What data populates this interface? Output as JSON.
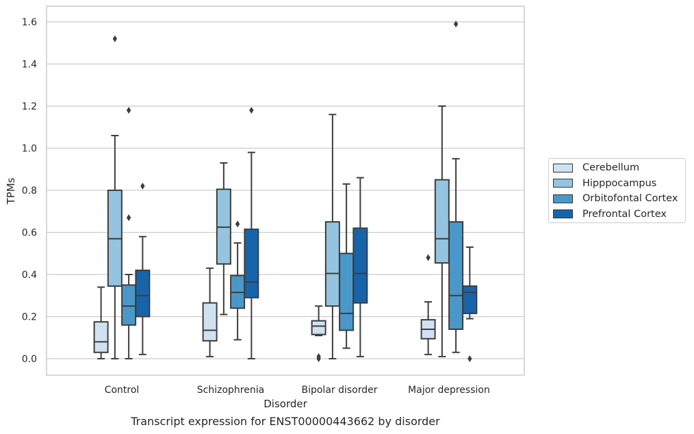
{
  "caption": "Transcript expression for ENST00000443662 by disorder",
  "chart_data": {
    "type": "box",
    "title": "",
    "xlabel": "Disorder",
    "ylabel": "TPMs",
    "ylim": [
      -0.08,
      1.67
    ],
    "yticks": [
      "0.0",
      "0.2",
      "0.4",
      "0.6",
      "0.8",
      "1.0",
      "1.2",
      "1.4",
      "1.6"
    ],
    "grid": "horizontal",
    "legend_position": "right",
    "categories": [
      "Control",
      "Schizophrenia",
      "Bipolar disorder",
      "Major depression"
    ],
    "series": [
      {
        "name": "Cerebellum",
        "color": "#d0e1f2",
        "boxes": [
          {
            "whislo": 0.0,
            "q1": 0.03,
            "med": 0.08,
            "q3": 0.175,
            "whishi": 0.34,
            "fliers": []
          },
          {
            "whislo": 0.01,
            "q1": 0.085,
            "med": 0.135,
            "q3": 0.265,
            "whishi": 0.43,
            "fliers": []
          },
          {
            "whislo": 0.11,
            "q1": 0.115,
            "med": 0.155,
            "q3": 0.18,
            "whishi": 0.25,
            "fliers": [
              0.01,
              0.0
            ]
          },
          {
            "whislo": 0.02,
            "q1": 0.095,
            "med": 0.14,
            "q3": 0.185,
            "whishi": 0.27,
            "fliers": [
              0.48
            ]
          }
        ]
      },
      {
        "name": "Hipppocampus",
        "color": "#94c4df",
        "boxes": [
          {
            "whislo": 0.0,
            "q1": 0.345,
            "med": 0.57,
            "q3": 0.8,
            "whishi": 1.06,
            "fliers": [
              1.52
            ]
          },
          {
            "whislo": 0.21,
            "q1": 0.45,
            "med": 0.625,
            "q3": 0.805,
            "whishi": 0.93,
            "fliers": []
          },
          {
            "whislo": 0.0,
            "q1": 0.25,
            "med": 0.405,
            "q3": 0.65,
            "whishi": 1.16,
            "fliers": []
          },
          {
            "whislo": 0.01,
            "q1": 0.455,
            "med": 0.57,
            "q3": 0.85,
            "whishi": 1.2,
            "fliers": []
          }
        ]
      },
      {
        "name": "Orbitofontal Cortex",
        "color": "#4a98c9",
        "boxes": [
          {
            "whislo": 0.0,
            "q1": 0.16,
            "med": 0.25,
            "q3": 0.35,
            "whishi": 0.4,
            "fliers": [
              0.67,
              1.18
            ]
          },
          {
            "whislo": 0.09,
            "q1": 0.24,
            "med": 0.315,
            "q3": 0.395,
            "whishi": 0.55,
            "fliers": [
              0.64
            ]
          },
          {
            "whislo": 0.05,
            "q1": 0.135,
            "med": 0.215,
            "q3": 0.5,
            "whishi": 0.83,
            "fliers": []
          },
          {
            "whislo": 0.03,
            "q1": 0.14,
            "med": 0.3,
            "q3": 0.65,
            "whishi": 0.95,
            "fliers": [
              1.59
            ]
          }
        ]
      },
      {
        "name": "Prefrontal Cortex",
        "color": "#1764ab",
        "boxes": [
          {
            "whislo": 0.02,
            "q1": 0.2,
            "med": 0.3,
            "q3": 0.42,
            "whishi": 0.58,
            "fliers": [
              0.82
            ]
          },
          {
            "whislo": 0.0,
            "q1": 0.29,
            "med": 0.365,
            "q3": 0.615,
            "whishi": 0.98,
            "fliers": [
              1.18
            ]
          },
          {
            "whislo": 0.01,
            "q1": 0.265,
            "med": 0.405,
            "q3": 0.62,
            "whishi": 0.86,
            "fliers": []
          },
          {
            "whislo": 0.19,
            "q1": 0.215,
            "med": 0.315,
            "q3": 0.345,
            "whishi": 0.53,
            "fliers": [
              0.0
            ]
          }
        ]
      }
    ]
  }
}
